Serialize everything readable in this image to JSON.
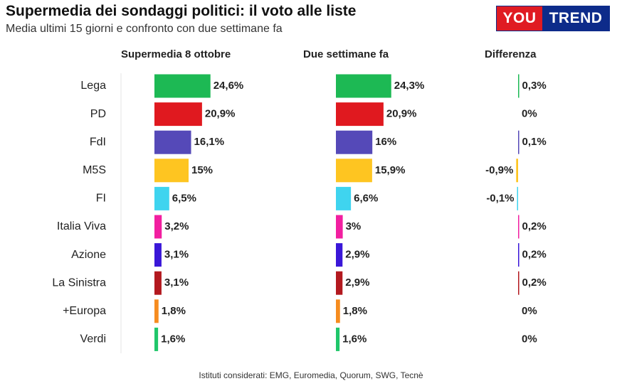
{
  "header": {
    "title": "Supermedia dei sondaggi politici: il voto alle liste",
    "subtitle": "Media ultimi 15 giorni e confronto con due settimane fa"
  },
  "logo": {
    "part1": "YOU",
    "part2": "TREND"
  },
  "columns": {
    "current": "Supermedia 8 ottobre",
    "previous": "Due settimane fa",
    "difference": "Differenza"
  },
  "footer": {
    "note": "Istituti considerati: EMG, Euromedia, Quorum, SWG, Tecnè"
  },
  "colors": {
    "Lega": "#1db954",
    "PD": "#e0191f",
    "FdI": "#5549b8",
    "M5S": "#fec521",
    "FI": "#3fd4ef",
    "Italia Viva": "#f21fa0",
    "Azione": "#3a17d8",
    "La Sinistra": "#b3191f",
    "+Europa": "#f68c1f",
    "Verdi": "#1fc66a"
  },
  "chart_data": {
    "type": "bar",
    "categories": [
      "Lega",
      "PD",
      "FdI",
      "M5S",
      "FI",
      "Italia Viva",
      "Azione",
      "La Sinistra",
      "+Europa",
      "Verdi"
    ],
    "series": [
      {
        "name": "Supermedia 8 ottobre",
        "values": [
          24.6,
          20.9,
          16.1,
          15,
          6.5,
          3.2,
          3.1,
          3.1,
          1.8,
          1.6
        ],
        "labels": [
          "24,6%",
          "20,9%",
          "16,1%",
          "15%",
          "6,5%",
          "3,2%",
          "3,1%",
          "3,1%",
          "1,8%",
          "1,6%"
        ]
      },
      {
        "name": "Due settimane fa",
        "values": [
          24.3,
          20.9,
          16,
          15.9,
          6.6,
          3,
          2.9,
          2.9,
          1.8,
          1.6
        ],
        "labels": [
          "24,3%",
          "20,9%",
          "16%",
          "15,9%",
          "6,6%",
          "3%",
          "2,9%",
          "2,9%",
          "1,8%",
          "1,6%"
        ]
      },
      {
        "name": "Differenza",
        "values": [
          0.3,
          0,
          0.1,
          -0.9,
          -0.1,
          0.2,
          0.2,
          0.2,
          0,
          0
        ],
        "labels": [
          "0,3%",
          "0%",
          "0,1%",
          "-0,9%",
          "-0,1%",
          "0,2%",
          "0,2%",
          "0,2%",
          "0%",
          "0%"
        ]
      }
    ]
  }
}
